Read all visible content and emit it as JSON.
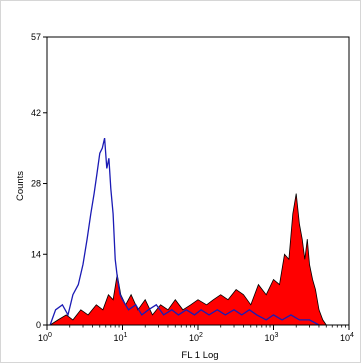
{
  "chart_data": {
    "type": "histogram-overlay",
    "xlabel": "FL 1  Log",
    "ylabel": "Counts",
    "x_scale": "log",
    "xlim": [
      1,
      10000
    ],
    "ylim": [
      0,
      57
    ],
    "y_ticks": [
      0,
      14,
      28,
      42,
      57
    ],
    "x_ticks": [
      {
        "value": 1,
        "base": "10",
        "exp": "0"
      },
      {
        "value": 10,
        "base": "10",
        "exp": "1"
      },
      {
        "value": 100,
        "base": "10",
        "exp": "2"
      },
      {
        "value": 1000,
        "base": "10",
        "exp": "3"
      },
      {
        "value": 10000,
        "base": "10",
        "exp": "4"
      }
    ],
    "grid": false,
    "series": [
      {
        "style": "filled",
        "fill": "#ff0000",
        "stroke": "#000000",
        "points": [
          [
            1.1,
            0
          ],
          [
            1.4,
            1
          ],
          [
            1.8,
            2
          ],
          [
            2.2,
            1
          ],
          [
            2.8,
            3
          ],
          [
            3.5,
            2
          ],
          [
            4.5,
            4
          ],
          [
            5.5,
            3
          ],
          [
            6.5,
            6
          ],
          [
            7.5,
            5
          ],
          [
            8.5,
            10
          ],
          [
            9.5,
            6
          ],
          [
            11,
            4
          ],
          [
            13,
            6
          ],
          [
            16,
            3
          ],
          [
            20,
            5
          ],
          [
            25,
            2
          ],
          [
            32,
            4
          ],
          [
            40,
            3
          ],
          [
            50,
            5
          ],
          [
            63,
            3
          ],
          [
            80,
            4
          ],
          [
            100,
            5
          ],
          [
            130,
            4
          ],
          [
            160,
            5
          ],
          [
            200,
            6
          ],
          [
            250,
            5
          ],
          [
            320,
            7
          ],
          [
            400,
            6
          ],
          [
            500,
            4
          ],
          [
            630,
            8
          ],
          [
            800,
            6
          ],
          [
            1000,
            9
          ],
          [
            1200,
            8
          ],
          [
            1400,
            14
          ],
          [
            1600,
            13
          ],
          [
            1800,
            22
          ],
          [
            2000,
            26
          ],
          [
            2200,
            20
          ],
          [
            2400,
            17
          ],
          [
            2600,
            13
          ],
          [
            2800,
            17
          ],
          [
            3000,
            12
          ],
          [
            3300,
            9
          ],
          [
            3600,
            7
          ],
          [
            4000,
            3
          ],
          [
            4500,
            1
          ],
          [
            5000,
            0
          ]
        ]
      },
      {
        "style": "line",
        "stroke": "#1b1bb5",
        "points": [
          [
            1.1,
            0
          ],
          [
            1.3,
            3
          ],
          [
            1.6,
            4
          ],
          [
            1.9,
            2
          ],
          [
            2.2,
            6
          ],
          [
            2.6,
            8
          ],
          [
            3.0,
            12
          ],
          [
            3.4,
            17
          ],
          [
            3.8,
            22
          ],
          [
            4.2,
            26
          ],
          [
            4.6,
            30
          ],
          [
            5.0,
            34
          ],
          [
            5.4,
            35
          ],
          [
            5.8,
            37
          ],
          [
            6.2,
            31
          ],
          [
            6.6,
            33
          ],
          [
            7.0,
            27
          ],
          [
            7.5,
            22
          ],
          [
            8.0,
            13
          ],
          [
            8.6,
            9
          ],
          [
            9.3,
            6
          ],
          [
            10,
            5
          ],
          [
            12,
            3
          ],
          [
            15,
            4
          ],
          [
            18,
            2
          ],
          [
            22,
            3
          ],
          [
            28,
            4
          ],
          [
            35,
            2
          ],
          [
            45,
            3
          ],
          [
            55,
            2
          ],
          [
            70,
            3
          ],
          [
            90,
            2
          ],
          [
            110,
            3
          ],
          [
            140,
            2
          ],
          [
            180,
            3
          ],
          [
            230,
            2
          ],
          [
            300,
            3
          ],
          [
            380,
            2
          ],
          [
            480,
            3
          ],
          [
            600,
            2
          ],
          [
            800,
            1
          ],
          [
            1000,
            2
          ],
          [
            1300,
            1
          ],
          [
            1700,
            2
          ],
          [
            2200,
            1
          ],
          [
            3000,
            1
          ],
          [
            4000,
            0
          ]
        ]
      }
    ]
  }
}
